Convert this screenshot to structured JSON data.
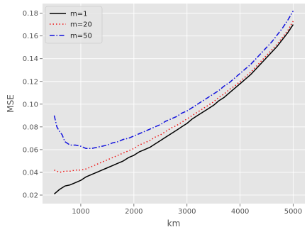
{
  "chart_data": {
    "type": "line",
    "title": "",
    "xlabel": "km",
    "ylabel": "MSE",
    "xlim": [
      280,
      5220
    ],
    "ylim": [
      0.0125,
      0.1885
    ],
    "xticks": [
      1000,
      2000,
      3000,
      4000,
      5000
    ],
    "xtick_labels": [
      "1000",
      "2000",
      "3000",
      "4000",
      "5000"
    ],
    "yticks": [
      0.02,
      0.04,
      0.06,
      0.08,
      0.1,
      0.12,
      0.14,
      0.16,
      0.18
    ],
    "ytick_labels": [
      "0.02",
      "0.04",
      "0.06",
      "0.08",
      "0.10",
      "0.12",
      "0.14",
      "0.16",
      "0.18"
    ],
    "grid": true,
    "legend_position": "top-left",
    "series": [
      {
        "name": "m=1",
        "color": "#000000",
        "style": "solid",
        "x": [
          500,
          600,
          700,
          800,
          900,
          1000,
          1100,
          1200,
          1300,
          1400,
          1500,
          1600,
          1700,
          1800,
          1900,
          2000,
          2100,
          2200,
          2300,
          2400,
          2500,
          2600,
          2700,
          2800,
          2900,
          3000,
          3100,
          3200,
          3300,
          3400,
          3500,
          3600,
          3700,
          3800,
          3900,
          4000,
          4100,
          4200,
          4300,
          4400,
          4500,
          4600,
          4700,
          4800,
          4900,
          5000
        ],
        "y": [
          0.021,
          0.025,
          0.028,
          0.029,
          0.031,
          0.033,
          0.036,
          0.038,
          0.04,
          0.042,
          0.044,
          0.046,
          0.048,
          0.05,
          0.053,
          0.055,
          0.058,
          0.06,
          0.062,
          0.065,
          0.068,
          0.071,
          0.074,
          0.077,
          0.08,
          0.083,
          0.087,
          0.09,
          0.093,
          0.096,
          0.099,
          0.103,
          0.106,
          0.11,
          0.114,
          0.118,
          0.122,
          0.126,
          0.131,
          0.136,
          0.141,
          0.146,
          0.151,
          0.157,
          0.163,
          0.17
        ]
      },
      {
        "name": "m=20",
        "color": "#ee1111",
        "style": "dotted",
        "x": [
          500,
          600,
          700,
          800,
          900,
          1000,
          1100,
          1200,
          1300,
          1400,
          1500,
          1600,
          1700,
          1800,
          1900,
          2000,
          2100,
          2200,
          2300,
          2400,
          2500,
          2600,
          2700,
          2800,
          2900,
          3000,
          3100,
          3200,
          3300,
          3400,
          3500,
          3600,
          3700,
          3800,
          3900,
          4000,
          4100,
          4200,
          4300,
          4400,
          4500,
          4600,
          4700,
          4800,
          4900,
          5000
        ],
        "y": [
          0.042,
          0.04,
          0.041,
          0.041,
          0.042,
          0.042,
          0.043,
          0.045,
          0.047,
          0.049,
          0.051,
          0.053,
          0.055,
          0.057,
          0.059,
          0.061,
          0.064,
          0.066,
          0.068,
          0.071,
          0.073,
          0.076,
          0.079,
          0.081,
          0.084,
          0.087,
          0.09,
          0.093,
          0.096,
          0.099,
          0.102,
          0.106,
          0.109,
          0.113,
          0.116,
          0.12,
          0.124,
          0.128,
          0.133,
          0.138,
          0.143,
          0.148,
          0.153,
          0.159,
          0.165,
          0.173
        ]
      },
      {
        "name": "m=50",
        "color": "#1111dd",
        "style": "dashdot",
        "x": [
          500,
          550,
          600,
          650,
          700,
          800,
          900,
          1000,
          1100,
          1200,
          1300,
          1400,
          1500,
          1600,
          1700,
          1800,
          1900,
          2000,
          2100,
          2200,
          2300,
          2400,
          2500,
          2600,
          2700,
          2800,
          2900,
          3000,
          3100,
          3200,
          3300,
          3400,
          3500,
          3600,
          3700,
          3800,
          3900,
          4000,
          4100,
          4200,
          4300,
          4400,
          4500,
          4600,
          4700,
          4800,
          4900,
          5000
        ],
        "y": [
          0.09,
          0.08,
          0.076,
          0.073,
          0.067,
          0.064,
          0.064,
          0.063,
          0.061,
          0.061,
          0.062,
          0.063,
          0.064,
          0.066,
          0.067,
          0.069,
          0.07,
          0.072,
          0.074,
          0.076,
          0.078,
          0.08,
          0.082,
          0.085,
          0.087,
          0.089,
          0.092,
          0.094,
          0.097,
          0.1,
          0.103,
          0.106,
          0.109,
          0.112,
          0.116,
          0.119,
          0.123,
          0.127,
          0.131,
          0.135,
          0.14,
          0.145,
          0.15,
          0.155,
          0.161,
          0.167,
          0.174,
          0.182
        ]
      }
    ]
  }
}
